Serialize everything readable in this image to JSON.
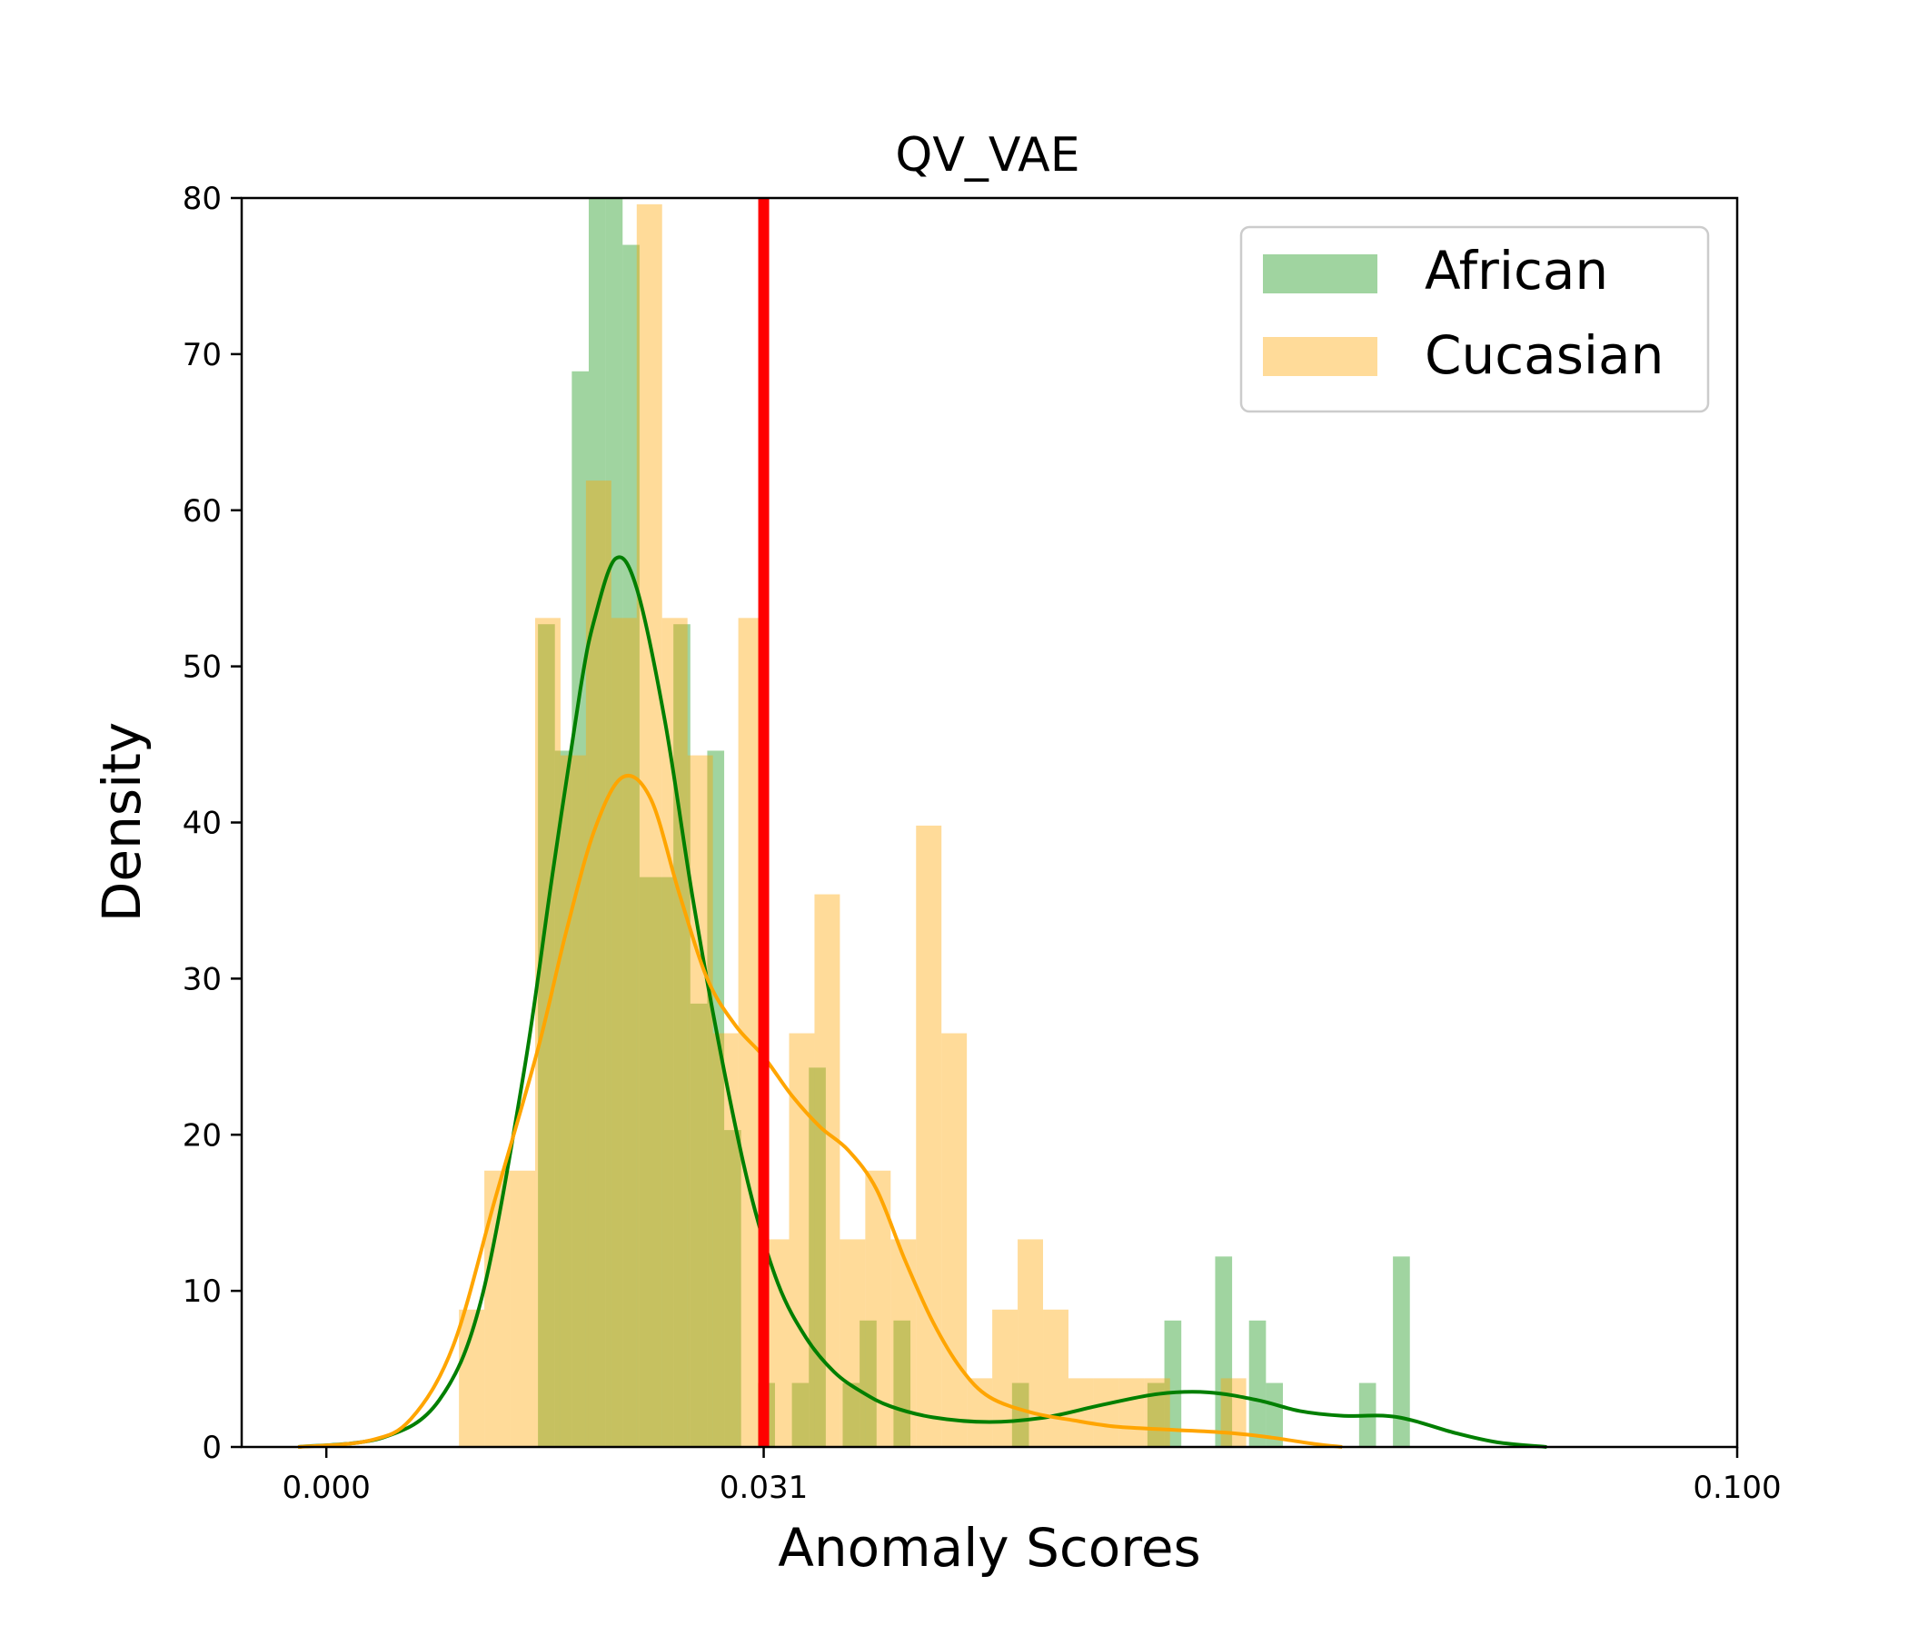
{
  "chart_data": {
    "type": "histogram",
    "title": "QV_VAE",
    "xlabel": "Anomaly Scores",
    "ylabel": "Density",
    "xlim": [
      -0.006,
      0.1
    ],
    "ylim": [
      0,
      80
    ],
    "xticks": [
      0.0,
      0.031,
      0.1
    ],
    "xtick_labels": [
      "0.000",
      "0.031",
      "0.100"
    ],
    "yticks": [
      0,
      10,
      20,
      30,
      40,
      50,
      60,
      70,
      80
    ],
    "ytick_labels": [
      "0",
      "10",
      "20",
      "30",
      "40",
      "50",
      "60",
      "70",
      "80"
    ],
    "threshold": {
      "x": 0.031,
      "color": "#ff0000"
    },
    "legend": {
      "position": "top-right"
    },
    "series": [
      {
        "name": "African",
        "hist_color": "#2ca02c",
        "hist_opacity": 0.45,
        "kde_color": "#007f00",
        "bars": [
          [
            0.015,
            0.0162,
            52.7
          ],
          [
            0.0162,
            0.0174,
            44.6
          ],
          [
            0.0174,
            0.0186,
            68.9
          ],
          [
            0.0186,
            0.0198,
            81.0
          ],
          [
            0.0198,
            0.021,
            81.0
          ],
          [
            0.021,
            0.0222,
            77.0
          ],
          [
            0.0222,
            0.0234,
            36.5
          ],
          [
            0.0234,
            0.0246,
            36.5
          ],
          [
            0.0246,
            0.0258,
            52.7
          ],
          [
            0.0258,
            0.027,
            28.4
          ],
          [
            0.027,
            0.0282,
            44.6
          ],
          [
            0.0282,
            0.0294,
            20.3
          ],
          [
            0.0306,
            0.0318,
            4.1
          ],
          [
            0.033,
            0.0342,
            4.1
          ],
          [
            0.0342,
            0.0354,
            24.3
          ],
          [
            0.0366,
            0.0378,
            4.1
          ],
          [
            0.0378,
            0.039,
            8.1
          ],
          [
            0.0402,
            0.0414,
            8.1
          ],
          [
            0.0486,
            0.0498,
            4.1
          ],
          [
            0.0582,
            0.0594,
            4.1
          ],
          [
            0.0594,
            0.0606,
            8.1
          ],
          [
            0.063,
            0.0642,
            12.2
          ],
          [
            0.0654,
            0.0666,
            8.1
          ],
          [
            0.0666,
            0.0678,
            4.1
          ],
          [
            0.0732,
            0.0744,
            4.1
          ],
          [
            0.0756,
            0.0768,
            12.2
          ]
        ],
        "kde": [
          [
            -0.002,
            0.0
          ],
          [
            0.004,
            0.6
          ],
          [
            0.008,
            3.0
          ],
          [
            0.011,
            9.5
          ],
          [
            0.014,
            24.0
          ],
          [
            0.016,
            36.5
          ],
          [
            0.018,
            48.5
          ],
          [
            0.019,
            53.0
          ],
          [
            0.0205,
            56.9
          ],
          [
            0.022,
            55.0
          ],
          [
            0.024,
            46.5
          ],
          [
            0.026,
            35.0
          ],
          [
            0.028,
            25.0
          ],
          [
            0.03,
            16.5
          ],
          [
            0.032,
            10.5
          ],
          [
            0.034,
            7.0
          ],
          [
            0.036,
            4.8
          ],
          [
            0.038,
            3.5
          ],
          [
            0.04,
            2.6
          ],
          [
            0.043,
            1.9
          ],
          [
            0.047,
            1.6
          ],
          [
            0.051,
            1.9
          ],
          [
            0.055,
            2.7
          ],
          [
            0.059,
            3.4
          ],
          [
            0.0625,
            3.5
          ],
          [
            0.066,
            3.0
          ],
          [
            0.069,
            2.3
          ],
          [
            0.072,
            2.0
          ],
          [
            0.075,
            2.0
          ],
          [
            0.077,
            1.7
          ],
          [
            0.08,
            0.9
          ],
          [
            0.083,
            0.3
          ],
          [
            0.0865,
            0.0
          ]
        ]
      },
      {
        "name": "Cucasian",
        "hist_color": "#ffa500",
        "hist_opacity": 0.4,
        "kde_color": "#ffa500",
        "bars": [
          [
            0.0094,
            0.0112,
            8.8
          ],
          [
            0.0112,
            0.013,
            17.7
          ],
          [
            0.013,
            0.0148,
            17.7
          ],
          [
            0.0148,
            0.0166,
            53.1
          ],
          [
            0.0166,
            0.0184,
            44.3
          ],
          [
            0.0184,
            0.0202,
            61.9
          ],
          [
            0.0202,
            0.022,
            53.1
          ],
          [
            0.022,
            0.0238,
            79.6
          ],
          [
            0.0238,
            0.0256,
            53.1
          ],
          [
            0.0256,
            0.0274,
            44.3
          ],
          [
            0.0274,
            0.0292,
            26.5
          ],
          [
            0.0292,
            0.031,
            53.1
          ],
          [
            0.031,
            0.0328,
            13.3
          ],
          [
            0.0328,
            0.0346,
            26.5
          ],
          [
            0.0346,
            0.0364,
            35.4
          ],
          [
            0.0364,
            0.0382,
            13.3
          ],
          [
            0.0382,
            0.04,
            17.7
          ],
          [
            0.04,
            0.0418,
            13.3
          ],
          [
            0.0418,
            0.0436,
            39.8
          ],
          [
            0.0436,
            0.0454,
            26.5
          ],
          [
            0.0454,
            0.0472,
            4.4
          ],
          [
            0.0472,
            0.049,
            8.8
          ],
          [
            0.049,
            0.0508,
            13.3
          ],
          [
            0.0508,
            0.0526,
            8.8
          ],
          [
            0.0526,
            0.0544,
            4.4
          ],
          [
            0.0544,
            0.0562,
            4.4
          ],
          [
            0.0562,
            0.058,
            4.4
          ],
          [
            0.058,
            0.0598,
            4.4
          ],
          [
            0.0634,
            0.0652,
            4.4
          ]
        ],
        "kde": [
          [
            -0.002,
            0.0
          ],
          [
            0.003,
            0.4
          ],
          [
            0.006,
            1.8
          ],
          [
            0.009,
            6.5
          ],
          [
            0.012,
            16.0
          ],
          [
            0.015,
            25.5
          ],
          [
            0.017,
            33.0
          ],
          [
            0.019,
            39.5
          ],
          [
            0.021,
            42.9
          ],
          [
            0.023,
            41.5
          ],
          [
            0.025,
            35.5
          ],
          [
            0.027,
            30.0
          ],
          [
            0.029,
            27.0
          ],
          [
            0.031,
            25.0
          ],
          [
            0.033,
            22.5
          ],
          [
            0.035,
            20.5
          ],
          [
            0.037,
            19.0
          ],
          [
            0.039,
            16.5
          ],
          [
            0.041,
            12.0
          ],
          [
            0.043,
            8.0
          ],
          [
            0.045,
            5.0
          ],
          [
            0.047,
            3.2
          ],
          [
            0.05,
            2.2
          ],
          [
            0.053,
            1.7
          ],
          [
            0.056,
            1.3
          ],
          [
            0.06,
            1.1
          ],
          [
            0.064,
            0.9
          ],
          [
            0.067,
            0.6
          ],
          [
            0.07,
            0.2
          ],
          [
            0.072,
            0.0
          ]
        ]
      }
    ]
  }
}
